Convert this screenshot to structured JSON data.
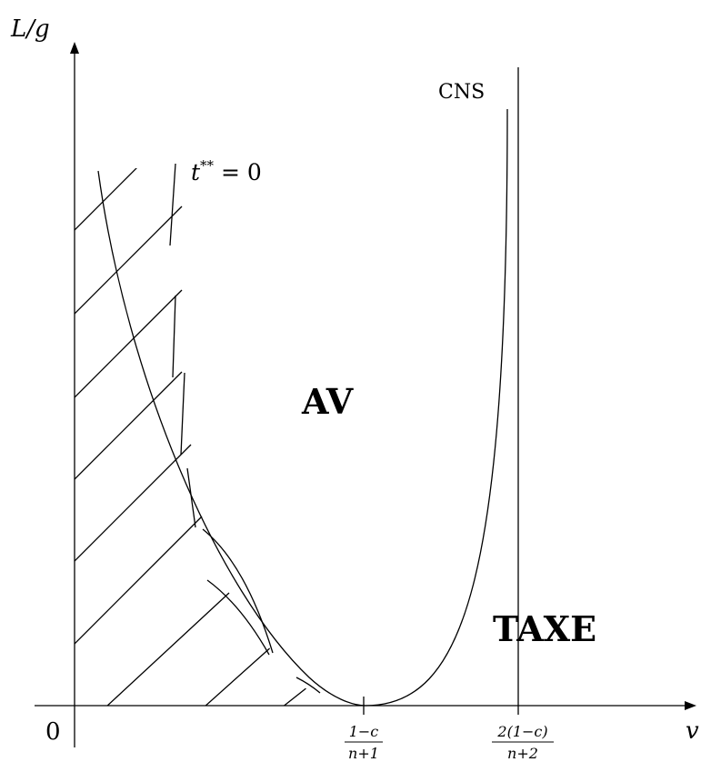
{
  "axes": {
    "y_label": "L/g",
    "x_label": "v",
    "origin_label": "0"
  },
  "ticks": {
    "t1_num": "1−c",
    "t1_den": "n+1",
    "t2_num": "2(1−c)",
    "t2_den": "n+2"
  },
  "curves": {
    "cns_label": "CNS",
    "t_label_base": "t",
    "t_label_sup": "**",
    "t_label_rest": " = 0"
  },
  "regions": {
    "av_label": "AV",
    "taxe_label": "TAXE"
  }
}
